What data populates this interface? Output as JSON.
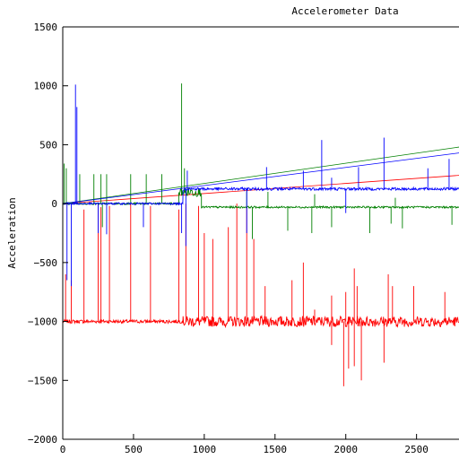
{
  "chart_data": {
    "type": "line",
    "title": "Accelerometer Data",
    "xlabel": "",
    "ylabel": "Acceleration",
    "xlim": [
      0,
      2800
    ],
    "ylim": [
      -2000,
      1500
    ],
    "xticks": [
      0,
      500,
      1000,
      1500,
      2000,
      2500
    ],
    "yticks": [
      -2000,
      -1500,
      -1000,
      -500,
      0,
      500,
      1000,
      1500
    ],
    "grid": false,
    "legend": "none",
    "series": [
      {
        "color": "#ff0000",
        "baseline_segments": [
          {
            "x_start": 0,
            "x_end": 850,
            "level": -1000,
            "noise": 15
          },
          {
            "x_start": 850,
            "x_end": 2800,
            "level": -1000,
            "noise": 45
          }
        ],
        "spikes": [
          {
            "x": 20,
            "y": -600
          },
          {
            "x": 60,
            "y": -650
          },
          {
            "x": 150,
            "y": -50
          },
          {
            "x": 250,
            "y": 0
          },
          {
            "x": 270,
            "y": -30
          },
          {
            "x": 330,
            "y": -20
          },
          {
            "x": 480,
            "y": 0
          },
          {
            "x": 620,
            "y": -20
          },
          {
            "x": 820,
            "y": -50
          },
          {
            "x": 870,
            "y": 0
          },
          {
            "x": 960,
            "y": -20
          },
          {
            "x": 1000,
            "y": -250
          },
          {
            "x": 1060,
            "y": -300
          },
          {
            "x": 1170,
            "y": -200
          },
          {
            "x": 1230,
            "y": 0
          },
          {
            "x": 1300,
            "y": -20
          },
          {
            "x": 1350,
            "y": -300
          },
          {
            "x": 1430,
            "y": -700
          },
          {
            "x": 1620,
            "y": -650
          },
          {
            "x": 1700,
            "y": -500
          },
          {
            "x": 1780,
            "y": -900
          },
          {
            "x": 1900,
            "y": -780
          },
          {
            "x": 2000,
            "y": -750
          },
          {
            "x": 2060,
            "y": -550
          },
          {
            "x": 2080,
            "y": -700
          },
          {
            "x": 2300,
            "y": -600
          },
          {
            "x": 2330,
            "y": -700
          },
          {
            "x": 2480,
            "y": -700
          },
          {
            "x": 2700,
            "y": -750
          }
        ],
        "dips": [
          {
            "x": 1985,
            "y": -1550
          },
          {
            "x": 2020,
            "y": -1400
          },
          {
            "x": 2060,
            "y": -1380
          },
          {
            "x": 2110,
            "y": -1500
          },
          {
            "x": 2270,
            "y": -1350
          },
          {
            "x": 1900,
            "y": -1200
          }
        ],
        "trend": {
          "x0": 0,
          "y0": 0,
          "x1": 2800,
          "y1": 240
        }
      },
      {
        "color": "#008000",
        "baseline_segments": [
          {
            "x_start": 0,
            "x_end": 820,
            "level": 0,
            "noise": 8
          },
          {
            "x_start": 820,
            "x_end": 980,
            "level": 100,
            "noise": 40
          },
          {
            "x_start": 980,
            "x_end": 2800,
            "level": -30,
            "noise": 8
          }
        ],
        "spikes": [
          {
            "x": 10,
            "y": 340
          },
          {
            "x": 25,
            "y": 300
          },
          {
            "x": 120,
            "y": 250
          },
          {
            "x": 220,
            "y": 250
          },
          {
            "x": 270,
            "y": 250
          },
          {
            "x": 310,
            "y": 250
          },
          {
            "x": 480,
            "y": 250
          },
          {
            "x": 590,
            "y": 250
          },
          {
            "x": 700,
            "y": 250
          },
          {
            "x": 840,
            "y": 1020
          },
          {
            "x": 860,
            "y": 300
          },
          {
            "x": 1300,
            "y": 130
          },
          {
            "x": 1450,
            "y": 100
          },
          {
            "x": 1780,
            "y": 80
          },
          {
            "x": 2350,
            "y": 50
          }
        ],
        "dips": [
          {
            "x": 280,
            "y": -200
          },
          {
            "x": 1340,
            "y": -300
          },
          {
            "x": 1590,
            "y": -230
          },
          {
            "x": 1760,
            "y": -250
          },
          {
            "x": 1900,
            "y": -200
          },
          {
            "x": 2170,
            "y": -250
          },
          {
            "x": 2320,
            "y": -170
          },
          {
            "x": 2400,
            "y": -210
          },
          {
            "x": 2750,
            "y": -180
          }
        ],
        "trend": {
          "x0": 0,
          "y0": 0,
          "x1": 2800,
          "y1": 480
        }
      },
      {
        "color": "#0000ff",
        "baseline_segments": [
          {
            "x_start": 0,
            "x_end": 850,
            "level": 0,
            "noise": 8
          },
          {
            "x_start": 850,
            "x_end": 2800,
            "level": 125,
            "noise": 12
          }
        ],
        "spikes": [
          {
            "x": 90,
            "y": 1010
          },
          {
            "x": 100,
            "y": 820
          },
          {
            "x": 880,
            "y": 280
          },
          {
            "x": 1440,
            "y": 310
          },
          {
            "x": 1700,
            "y": 280
          },
          {
            "x": 1830,
            "y": 540
          },
          {
            "x": 1900,
            "y": 220
          },
          {
            "x": 2090,
            "y": 310
          },
          {
            "x": 2270,
            "y": 560
          },
          {
            "x": 2580,
            "y": 300
          },
          {
            "x": 2730,
            "y": 380
          }
        ],
        "dips": [
          {
            "x": 30,
            "y": -650
          },
          {
            "x": 60,
            "y": -700
          },
          {
            "x": 250,
            "y": -250
          },
          {
            "x": 310,
            "y": -260
          },
          {
            "x": 570,
            "y": -200
          },
          {
            "x": 840,
            "y": -250
          },
          {
            "x": 870,
            "y": -360
          },
          {
            "x": 1300,
            "y": -250
          },
          {
            "x": 2000,
            "y": -80
          }
        ],
        "trend": {
          "x0": 0,
          "y0": 0,
          "x1": 2800,
          "y1": 430
        }
      }
    ]
  }
}
